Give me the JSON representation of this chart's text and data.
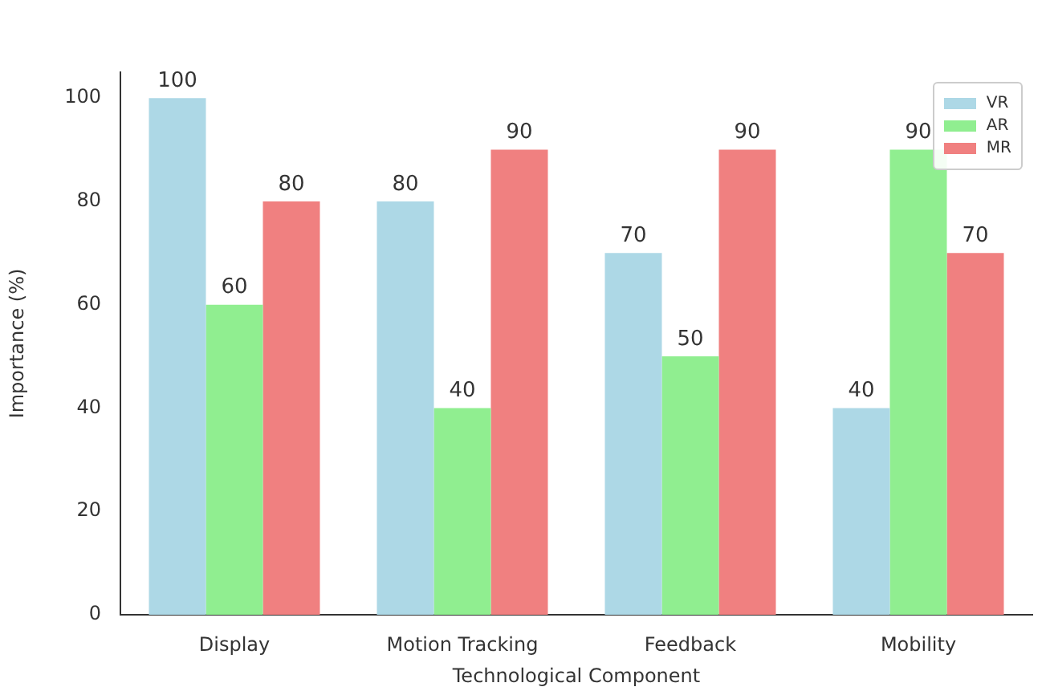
{
  "chart_data": {
    "type": "bar",
    "xlabel": "Technological Component",
    "ylabel": "Importance (%)",
    "categories": [
      "Display",
      "Motion Tracking",
      "Feedback",
      "Mobility"
    ],
    "series": [
      {
        "name": "VR",
        "color": "#add8e6",
        "values": [
          100,
          80,
          70,
          40
        ]
      },
      {
        "name": "AR",
        "color": "#90ee90",
        "values": [
          60,
          40,
          50,
          90
        ]
      },
      {
        "name": "MR",
        "color": "#f08080",
        "values": [
          80,
          90,
          90,
          70
        ]
      }
    ],
    "ylim": [
      0,
      105
    ],
    "yticks": [
      0,
      20,
      40,
      60,
      80,
      100
    ],
    "grid": false,
    "legend": "top right",
    "data_labels": true
  }
}
